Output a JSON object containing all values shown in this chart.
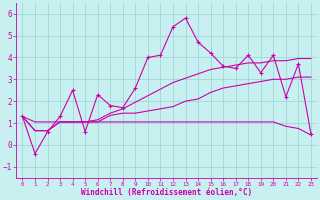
{
  "xlabel": "Windchill (Refroidissement éolien,°C)",
  "background_color": "#c8f0f0",
  "grid_color": "#a0d8d8",
  "line_color": "#cc00aa",
  "x_data": [
    0,
    1,
    2,
    3,
    4,
    5,
    6,
    7,
    8,
    9,
    10,
    11,
    12,
    13,
    14,
    15,
    16,
    17,
    18,
    19,
    20,
    21,
    22,
    23
  ],
  "series1": [
    1.3,
    -0.4,
    0.6,
    1.3,
    2.5,
    0.6,
    2.3,
    1.8,
    1.7,
    2.6,
    4.0,
    4.1,
    5.4,
    5.8,
    4.7,
    4.2,
    3.6,
    3.5,
    4.1,
    3.3,
    4.1,
    2.2,
    3.7,
    0.5
  ],
  "series2": [
    1.3,
    0.65,
    0.65,
    1.05,
    1.05,
    1.05,
    1.05,
    1.35,
    1.45,
    1.45,
    1.55,
    1.65,
    1.75,
    2.0,
    2.1,
    2.4,
    2.6,
    2.7,
    2.8,
    2.9,
    3.0,
    3.0,
    3.1,
    3.1
  ],
  "series3": [
    1.3,
    0.65,
    0.65,
    1.05,
    1.05,
    1.05,
    1.15,
    1.45,
    1.65,
    1.95,
    2.25,
    2.55,
    2.85,
    3.05,
    3.25,
    3.45,
    3.55,
    3.65,
    3.75,
    3.75,
    3.85,
    3.85,
    3.95,
    3.95
  ],
  "series4": [
    1.3,
    1.05,
    1.05,
    1.05,
    1.05,
    1.05,
    1.05,
    1.05,
    1.05,
    1.05,
    1.05,
    1.05,
    1.05,
    1.05,
    1.05,
    1.05,
    1.05,
    1.05,
    1.05,
    1.05,
    1.05,
    0.85,
    0.75,
    0.45
  ],
  "ylim": [
    -1.5,
    6.5
  ],
  "xlim": [
    -0.5,
    23.5
  ],
  "yticks": [
    -1,
    0,
    1,
    2,
    3,
    4,
    5,
    6
  ],
  "xticks": [
    0,
    1,
    2,
    3,
    4,
    5,
    6,
    7,
    8,
    9,
    10,
    11,
    12,
    13,
    14,
    15,
    16,
    17,
    18,
    19,
    20,
    21,
    22,
    23
  ]
}
